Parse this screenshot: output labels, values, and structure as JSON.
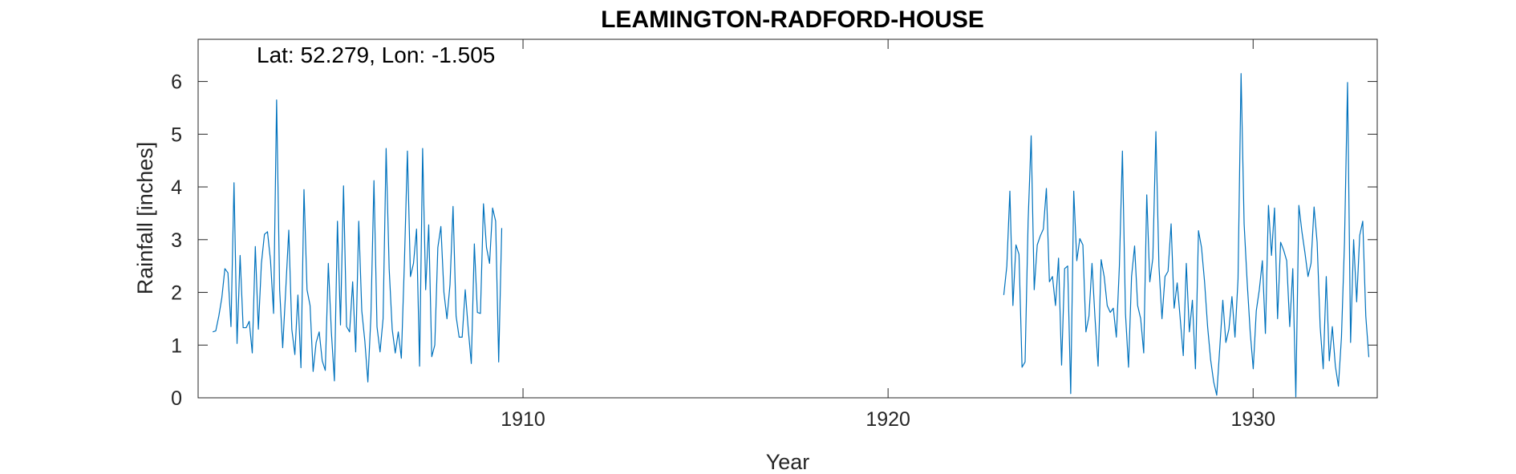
{
  "chart_data": {
    "type": "line",
    "title": "LEAMINGTON-RADFORD-HOUSE",
    "annotation": "Lat: 52.279, Lon: -1.505",
    "xlabel": "Year",
    "ylabel": "Rainfall [inches]",
    "xlim": [
      1901.1,
      1933.4
    ],
    "ylim": [
      0,
      6.8
    ],
    "xticks": [
      1910,
      1920,
      1930
    ],
    "yticks": [
      0,
      1,
      2,
      3,
      4,
      5,
      6
    ],
    "grid": false,
    "line_color": "#0072BD",
    "series": [
      {
        "segments": [
          {
            "start_year": 1901.5,
            "step": 0.0833333,
            "values": [
              1.25,
              1.27,
              1.55,
              1.9,
              2.45,
              2.37,
              1.35,
              4.08,
              1.03,
              2.7,
              1.33,
              1.33,
              1.45,
              0.85,
              2.87,
              1.3,
              2.55,
              3.1,
              3.15,
              2.6,
              1.6,
              5.65,
              2.05,
              0.95,
              2.05,
              3.18,
              1.3,
              0.82,
              1.95,
              0.57,
              3.95,
              2.05,
              1.75,
              0.5,
              1.05,
              1.25,
              0.7,
              0.52,
              2.55,
              1.25,
              0.32,
              3.35,
              1.38,
              4.02,
              1.35,
              1.25,
              2.2,
              0.87,
              3.35,
              1.65,
              1.08,
              0.3,
              1.55,
              4.12,
              1.35,
              0.87,
              1.5,
              4.73,
              2.45,
              1.3,
              0.85,
              1.25,
              0.75,
              2.55,
              4.68,
              2.3,
              2.55,
              3.2,
              0.6,
              4.73,
              2.05,
              3.28,
              0.78,
              1.0,
              2.85,
              3.25,
              2.0,
              1.5,
              2.15,
              3.63,
              1.55,
              1.15,
              1.15,
              2.05,
              1.3,
              0.65,
              2.92,
              1.62,
              1.6,
              3.68,
              2.85,
              2.55,
              3.6,
              3.35,
              0.68,
              3.22
            ]
          },
          {
            "start_year": 1923.17,
            "step": 0.0833333,
            "values": [
              1.95,
              2.5,
              3.92,
              1.75,
              2.9,
              2.72,
              0.58,
              0.68,
              3.35,
              4.97,
              2.05,
              2.9,
              3.07,
              3.2,
              3.97,
              2.2,
              2.3,
              1.75,
              2.65,
              0.62,
              2.45,
              2.5,
              0.08,
              3.92,
              2.6,
              3.02,
              2.9,
              1.25,
              1.55,
              2.55,
              1.5,
              0.6,
              2.62,
              2.3,
              1.75,
              1.62,
              1.7,
              1.15,
              2.5,
              4.68,
              1.6,
              0.58,
              2.3,
              2.88,
              1.75,
              1.5,
              0.85,
              3.85,
              2.2,
              2.65,
              5.05,
              2.5,
              1.5,
              2.3,
              2.4,
              3.3,
              1.7,
              2.18,
              1.5,
              0.8,
              2.55,
              1.25,
              1.85,
              0.55,
              3.17,
              2.85,
              2.2,
              1.35,
              0.72,
              0.3,
              0.05,
              0.95,
              1.85,
              1.05,
              1.3,
              1.92,
              1.15,
              2.25,
              6.15,
              3.3,
              2.2,
              1.25,
              0.55,
              1.65,
              2.05,
              2.6,
              1.22,
              3.65,
              2.7,
              3.6,
              1.5,
              2.95,
              2.8,
              2.6,
              1.35,
              2.45,
              0.02,
              3.65,
              3.15,
              2.75,
              2.3,
              2.55,
              3.62,
              2.95,
              1.35,
              0.55,
              2.3,
              0.7,
              1.35,
              0.6,
              0.22,
              1.15,
              2.95,
              5.98,
              1.05,
              3.0,
              1.82,
              3.08,
              3.35,
              1.55,
              0.77
            ]
          }
        ]
      }
    ]
  }
}
